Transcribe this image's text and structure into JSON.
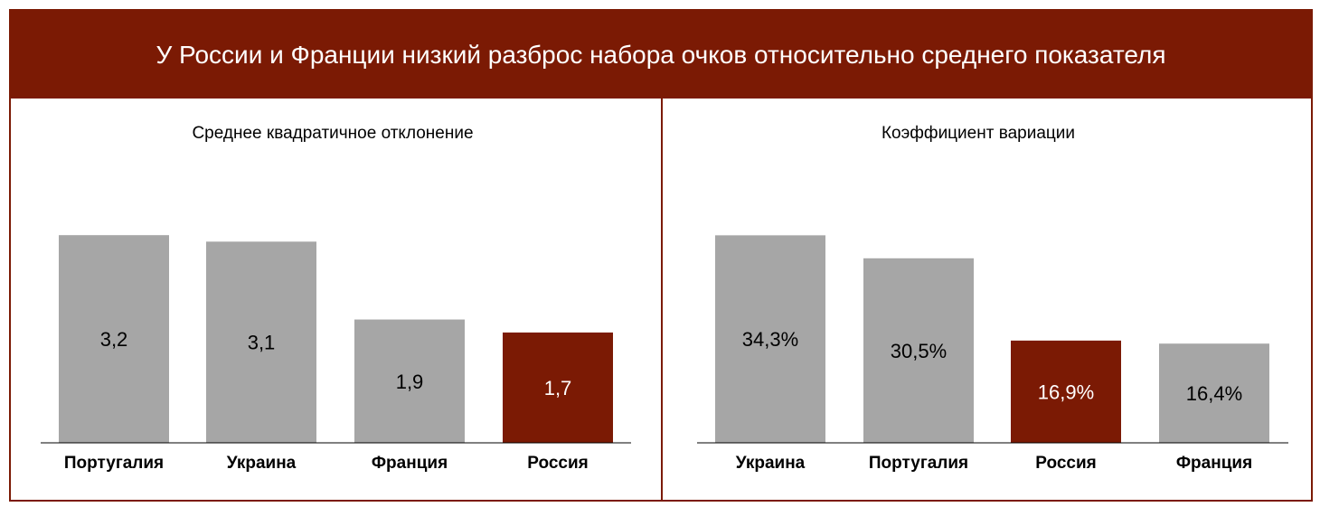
{
  "title": "У России и Франции низкий разброс набора очков относительно среднего показателя",
  "colors": {
    "accent": "#7B1A04",
    "bar_default": "#A6A6A6",
    "axis": "#000000"
  },
  "chart_data": [
    {
      "type": "bar",
      "title": "Среднее квадратичное отклонение",
      "categories": [
        "Португалия",
        "Украина",
        "Франция",
        "Россия"
      ],
      "values": [
        3.2,
        3.1,
        1.9,
        1.7
      ],
      "value_labels": [
        "3,2",
        "3,1",
        "1,9",
        "1,7"
      ],
      "highlight": "Россия",
      "ylim": [
        0,
        3.3
      ],
      "grid": false,
      "xlabel": "",
      "ylabel": ""
    },
    {
      "type": "bar",
      "title": "Коэффициент вариации",
      "categories": [
        "Украина",
        "Португалия",
        "Россия",
        "Франция"
      ],
      "values": [
        34.3,
        30.5,
        16.9,
        16.4
      ],
      "value_labels": [
        "34,3%",
        "30,5%",
        "16,9%",
        "16,4%"
      ],
      "highlight": "Россия",
      "ylim": [
        0,
        35.4
      ],
      "grid": false,
      "xlabel": "",
      "ylabel": ""
    }
  ]
}
